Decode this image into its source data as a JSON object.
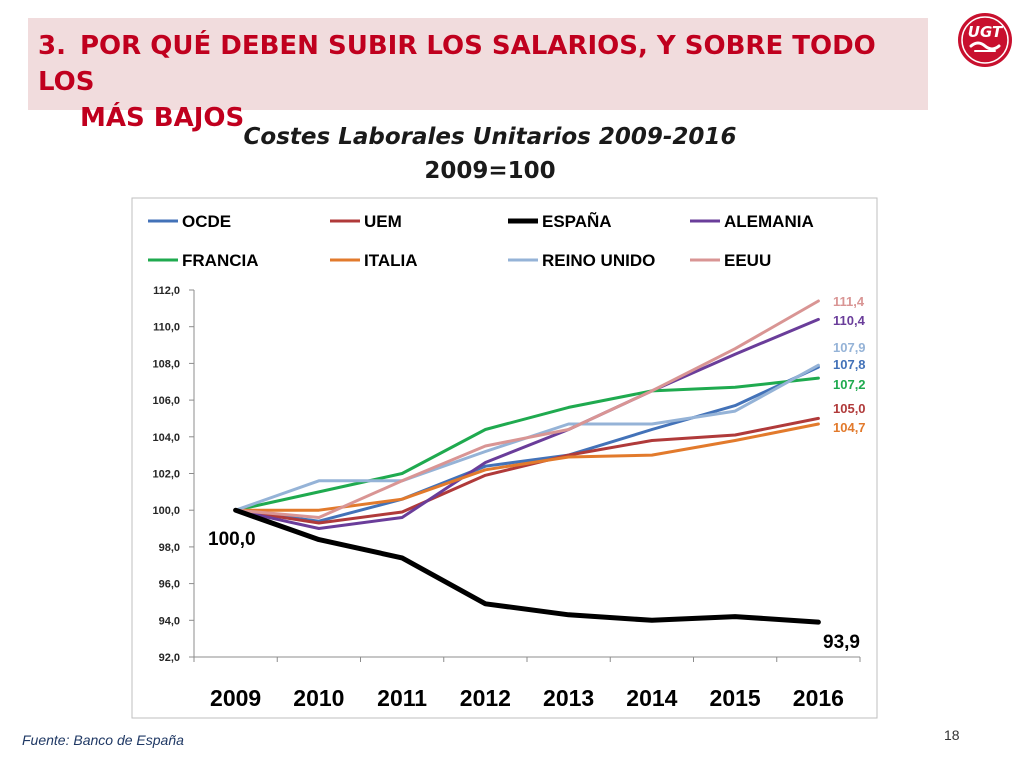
{
  "header": {
    "number": "3.",
    "title_line1": "POR QUÉ DEBEN SUBIR LOS SALARIOS, Y SOBRE TODO LOS",
    "title_line2": "MÁS BAJOS"
  },
  "logo": {
    "text": "UGT",
    "color": "#c8102e",
    "icon": "ugt-handshake-logo"
  },
  "source": "Fuente: Banco de España",
  "page_number": "18",
  "chart_data": {
    "type": "line",
    "title": "Costes Laborales Unitarios 2009-2016",
    "subtitle": "2009=100",
    "xlabel": "",
    "ylabel": "",
    "x": [
      "2009",
      "2010",
      "2011",
      "2012",
      "2013",
      "2014",
      "2015",
      "2016"
    ],
    "ylim": [
      92,
      112
    ],
    "yticks": [
      "92,0",
      "94,0",
      "96,0",
      "98,0",
      "100,0",
      "102,0",
      "104,0",
      "106,0",
      "108,0",
      "110,0",
      "112,0"
    ],
    "grid": false,
    "legend_position": "top",
    "series": [
      {
        "name": "OCDE",
        "color": "#4372b8",
        "values": [
          100.0,
          99.4,
          100.6,
          102.4,
          103.0,
          104.4,
          105.7,
          107.8
        ],
        "end_label": "107,8"
      },
      {
        "name": "UEM",
        "color": "#b03a3a",
        "values": [
          100.0,
          99.3,
          99.9,
          101.9,
          103.0,
          103.8,
          104.1,
          105.0
        ],
        "end_label": "105,0"
      },
      {
        "name": "ESPAÑA",
        "color": "#000000",
        "values": [
          100.0,
          98.4,
          97.4,
          94.9,
          94.3,
          94.0,
          94.2,
          93.9
        ],
        "end_label": "93,9",
        "start_label": "100,0"
      },
      {
        "name": "ALEMANIA",
        "color": "#6a3d9a",
        "values": [
          100.0,
          99.0,
          99.6,
          102.6,
          104.4,
          106.5,
          108.5,
          110.4
        ],
        "end_label": "110,4"
      },
      {
        "name": "FRANCIA",
        "color": "#1faa4f",
        "values": [
          100.0,
          101.0,
          102.0,
          104.4,
          105.6,
          106.5,
          106.7,
          107.2
        ],
        "end_label": "107,2"
      },
      {
        "name": "ITALIA",
        "color": "#e27a2c",
        "values": [
          100.0,
          100.0,
          100.6,
          102.2,
          102.9,
          103.0,
          103.8,
          104.7
        ],
        "end_label": "104,7"
      },
      {
        "name": "REINO UNIDO",
        "color": "#95b3d7",
        "values": [
          100.0,
          101.6,
          101.6,
          103.2,
          104.7,
          104.7,
          105.4,
          107.9
        ],
        "end_label": "107,9"
      },
      {
        "name": "EEUU",
        "color": "#d99594",
        "values": [
          100.0,
          99.6,
          101.6,
          103.5,
          104.4,
          106.5,
          108.8,
          111.4
        ],
        "end_label": "111,4"
      }
    ]
  }
}
